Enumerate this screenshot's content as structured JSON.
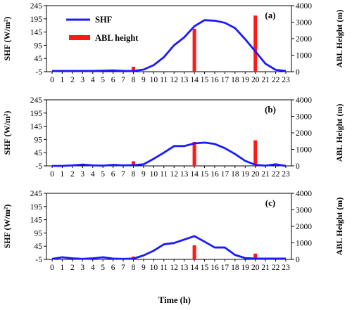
{
  "colors": {
    "shf_line": "#1a1aff",
    "abl_bar": "#ff1a1a",
    "axis": "#000000"
  },
  "figure": {
    "xlabel": "Time (h)",
    "legend": {
      "shf": "SHF",
      "abl": "ABL height"
    }
  },
  "chart_data": [
    {
      "type": "line+bar",
      "panel_label": "(a)",
      "ylabel_left": "SHF (W/m²)",
      "ylabel_right": "ABL Height (m)",
      "yticks_left": [
        "-5",
        "45",
        "95",
        "145",
        "195",
        "245"
      ],
      "yticks_right": [
        "0",
        "1000",
        "2000",
        "3000",
        "4000"
      ],
      "ylim_left": [
        -5,
        245
      ],
      "ylim_right": [
        0,
        4000
      ],
      "xticks": [
        "0",
        "1",
        "2",
        "3",
        "4",
        "5",
        "6",
        "7",
        "8",
        "9",
        "10",
        "11",
        "12",
        "13",
        "14",
        "15",
        "16",
        "17",
        "18",
        "19",
        "20",
        "21",
        "22",
        "23"
      ],
      "series": [
        {
          "name": "SHF",
          "axis": "left",
          "x": [
            0,
            1,
            2,
            3,
            4,
            5,
            6,
            7,
            8,
            9,
            10,
            11,
            12,
            13,
            14,
            15,
            16,
            17,
            18,
            19,
            20,
            21,
            22,
            23
          ],
          "values": [
            -2,
            -2,
            -2,
            -2,
            -2,
            -1,
            0,
            -2,
            -2,
            3,
            20,
            50,
            95,
            125,
            167,
            190,
            188,
            180,
            160,
            118,
            72,
            25,
            2,
            -2
          ]
        },
        {
          "name": "ABL height",
          "axis": "right",
          "type": "bar",
          "x": [
            8,
            14,
            20
          ],
          "values": [
            300,
            2600,
            3400
          ]
        }
      ]
    },
    {
      "type": "line+bar",
      "panel_label": "(b)",
      "ylabel_left": "SHF (W/m²)",
      "ylabel_right": "ABL Height (m)",
      "yticks_left": [
        "-5",
        "45",
        "95",
        "145",
        "195",
        "245"
      ],
      "yticks_right": [
        "0",
        "1000",
        "2000",
        "3000",
        "4000"
      ],
      "ylim_left": [
        -5,
        245
      ],
      "ylim_right": [
        0,
        4000
      ],
      "xticks": [
        "0",
        "1",
        "2",
        "3",
        "4",
        "5",
        "6",
        "7",
        "8",
        "9",
        "10",
        "11",
        "12",
        "13",
        "14",
        "15",
        "16",
        "17",
        "18",
        "19",
        "20",
        "21",
        "22",
        "23"
      ],
      "series": [
        {
          "name": "SHF",
          "axis": "left",
          "x": [
            0,
            1,
            2,
            3,
            4,
            5,
            6,
            7,
            8,
            9,
            10,
            11,
            12,
            13,
            14,
            15,
            16,
            17,
            18,
            19,
            20,
            21,
            22,
            23
          ],
          "values": [
            -5,
            -5,
            -3,
            0,
            -3,
            -4,
            -1,
            -3,
            -2,
            1,
            22,
            45,
            70,
            70,
            80,
            83,
            78,
            62,
            40,
            14,
            -1,
            -4,
            1,
            -5
          ]
        },
        {
          "name": "ABL height",
          "axis": "right",
          "type": "bar",
          "x": [
            8,
            14,
            20
          ],
          "values": [
            280,
            1450,
            1550
          ]
        }
      ]
    },
    {
      "type": "line+bar",
      "panel_label": "(c)",
      "ylabel_left": "SHF (W/m²)",
      "ylabel_right": "ABL Height (m)",
      "yticks_left": [
        "-5",
        "45",
        "95",
        "145",
        "195",
        "245"
      ],
      "yticks_right": [
        "0",
        "1000",
        "2000",
        "3000",
        "4000"
      ],
      "ylim_left": [
        -5,
        245
      ],
      "ylim_right": [
        0,
        4000
      ],
      "xticks": [
        "0",
        "1",
        "2",
        "3",
        "4",
        "5",
        "6",
        "7",
        "8",
        "9",
        "10",
        "11",
        "12",
        "13",
        "14",
        "15",
        "16",
        "17",
        "18",
        "19",
        "20",
        "21",
        "22",
        "23"
      ],
      "series": [
        {
          "name": "SHF",
          "axis": "left",
          "x": [
            0,
            1,
            2,
            3,
            4,
            5,
            6,
            7,
            8,
            9,
            10,
            11,
            12,
            13,
            14,
            15,
            16,
            17,
            18,
            19,
            20,
            21,
            22,
            23
          ],
          "values": [
            -3,
            3,
            -1,
            -3,
            -1,
            3,
            -2,
            -3,
            -2,
            10,
            28,
            52,
            57,
            70,
            83,
            62,
            40,
            40,
            12,
            0,
            -2,
            -2,
            -2,
            -2
          ]
        },
        {
          "name": "ABL height",
          "axis": "right",
          "type": "bar",
          "x": [
            8,
            14,
            20
          ],
          "values": [
            170,
            850,
            350
          ]
        }
      ]
    }
  ]
}
